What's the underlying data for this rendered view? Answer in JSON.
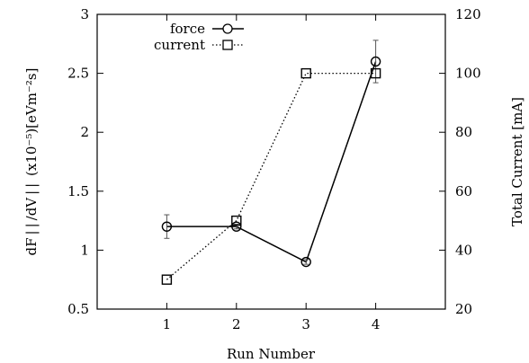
{
  "chart_data": {
    "type": "line",
    "x": [
      1,
      2,
      3,
      4
    ],
    "xlim": [
      0,
      5
    ],
    "xticks": [
      1,
      2,
      3,
      4
    ],
    "xlabel": "Run Number",
    "y_left": {
      "label": "dF | | /dV | |  (x10⁻⁵)[eVm⁻²s]",
      "lim": [
        0.5,
        3
      ],
      "ticks": [
        "0.5",
        "1",
        "1.5",
        "2",
        "2.5",
        "3"
      ]
    },
    "y_right": {
      "label": "Total Current [mA]",
      "lim": [
        20,
        120
      ],
      "ticks": [
        "20",
        "40",
        "60",
        "80",
        "100",
        "120"
      ]
    },
    "grid": false,
    "legend_position": "top-left",
    "series": [
      {
        "name": "force",
        "axis": "left",
        "marker": "circle",
        "line": "solid",
        "values": [
          1.2,
          1.2,
          0.9,
          2.6
        ],
        "errors": [
          0.1,
          0.02,
          0.02,
          0.18
        ]
      },
      {
        "name": "current",
        "axis": "right",
        "marker": "square",
        "line": "dotted",
        "values": [
          30,
          50,
          100,
          100
        ]
      }
    ]
  }
}
